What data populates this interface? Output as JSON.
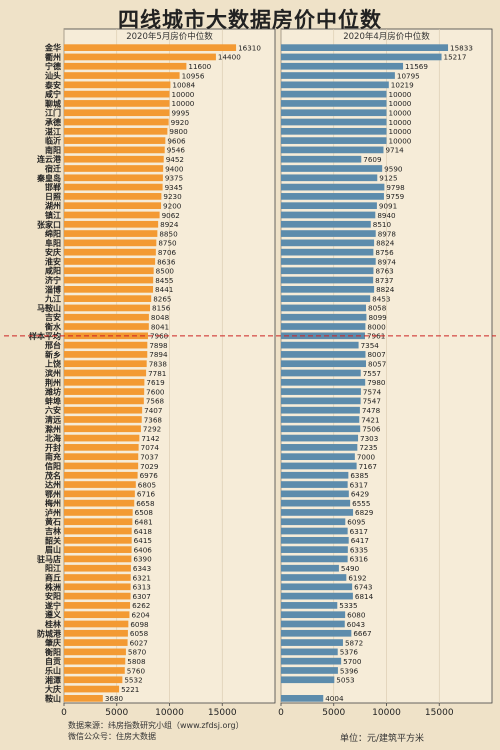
{
  "title": "四线城市大数据房价中位数",
  "source_line1": "数据来源：纬房指数研究小组（www.zfdsj.org）",
  "source_line2": "微信公众号：住房大数据",
  "unit_text": "单位：元/建筑平方米",
  "colors": {
    "left": "#f39a33",
    "right": "#5d8cac",
    "avg_line": "#cc2222"
  },
  "chart_data": [
    {
      "type": "bar",
      "title": "2020年5月房价中位数",
      "xlim": [
        0,
        20000
      ],
      "xticks": [
        "0",
        "5000",
        "10000",
        "15000"
      ],
      "categories": [
        "金华",
        "衢州",
        "宁德",
        "汕头",
        "泰安",
        "咸宁",
        "聊城",
        "江门",
        "承德",
        "湛江",
        "临沂",
        "南阳",
        "连云港",
        "宿迁",
        "秦皇岛",
        "邯郸",
        "日照",
        "湖州",
        "镇江",
        "张家口",
        "绵阳",
        "阜阳",
        "安庆",
        "淮安",
        "咸阳",
        "济宁",
        "淄博",
        "九江",
        "马鞍山",
        "吉安",
        "衡水",
        "样本平均",
        "邢台",
        "新乡",
        "上饶",
        "滨州",
        "荆州",
        "潍坊",
        "蚌埠",
        "六安",
        "清远",
        "滁州",
        "北海",
        "开封",
        "南充",
        "信阳",
        "茂名",
        "达州",
        "鄂州",
        "梅州",
        "泸州",
        "黄石",
        "吉林",
        "韶关",
        "眉山",
        "驻马店",
        "阳江",
        "商丘",
        "株洲",
        "安阳",
        "遂宁",
        "遵义",
        "桂林",
        "防城港",
        "肇庆",
        "衡阳",
        "自贡",
        "乐山",
        "湘潭",
        "大庆",
        "鞍山"
      ],
      "values": [
        16310,
        14400,
        11600,
        10956,
        10084,
        10000,
        10000,
        9995,
        9920,
        9800,
        9606,
        9546,
        9452,
        9400,
        9375,
        9345,
        9230,
        9200,
        9062,
        8924,
        8850,
        8750,
        8706,
        8636,
        8500,
        8455,
        8441,
        8265,
        8156,
        8048,
        8041,
        7960,
        7898,
        7894,
        7838,
        7781,
        7619,
        7600,
        7568,
        7407,
        7368,
        7292,
        7142,
        7074,
        7037,
        7029,
        6976,
        6805,
        6716,
        6658,
        6508,
        6481,
        6418,
        6415,
        6406,
        6390,
        6343,
        6321,
        6313,
        6307,
        6262,
        6204,
        6098,
        6058,
        6027,
        5870,
        5808,
        5760,
        5532,
        5221,
        3680
      ],
      "value_labels": [
        "16310",
        "14400",
        "11600",
        "10956",
        "10084",
        "10000",
        "10000",
        "9995",
        "9920",
        "9800",
        "9606",
        "9546",
        "9452",
        "9400",
        "9375",
        "9345",
        "9230",
        "9200",
        "9062",
        "8924",
        "8850",
        "8750",
        "8706",
        "8636",
        "8500",
        "8455",
        "8441",
        "8265",
        "8156",
        "8048",
        "8041",
        "7960",
        "7898",
        "7894",
        "7838",
        "7781",
        "7619",
        "7600",
        "7568",
        "7407",
        "7368",
        "7292",
        "7142",
        "7074",
        "7037",
        "7029",
        "6976",
        "6805",
        "6716",
        "6658",
        "6508",
        "6481",
        "6418",
        "6415",
        "6406",
        "6390",
        "6343",
        "6321",
        "6313",
        "6307",
        "6262",
        "6204",
        "6098",
        "6058",
        "6027",
        "5870",
        "5808",
        "5760",
        "5532",
        "5221",
        "3680"
      ],
      "average_label": "样本平均"
    },
    {
      "type": "bar",
      "title": "2020年4月房价中位数",
      "xlim": [
        0,
        20000
      ],
      "xticks": [
        "0",
        "5000",
        "10000",
        "15000"
      ],
      "values": [
        15833,
        15217,
        11569,
        10795,
        10219,
        10000,
        10000,
        10000,
        10000,
        10000,
        10000,
        9714,
        7609,
        9590,
        9125,
        9798,
        9759,
        9091,
        8940,
        8510,
        8978,
        8824,
        8756,
        8974,
        8763,
        8737,
        8824,
        8453,
        8058,
        8099,
        8000,
        7961,
        7354,
        8007,
        8057,
        7557,
        7980,
        7574,
        7547,
        7478,
        7421,
        7506,
        7303,
        7235,
        7000,
        7167,
        6385,
        6317,
        6429,
        6555,
        6829,
        6095,
        6317,
        6417,
        6335,
        6316,
        5490,
        6192,
        6743,
        6814,
        5335,
        6080,
        6043,
        6667,
        5872,
        5376,
        5700,
        5396,
        5053,
        4004
      ],
      "value_labels": [
        "15833",
        "15217",
        "11569",
        "10795",
        "10219",
        "10000",
        "10000",
        "10000",
        "10000",
        "10000",
        "10000",
        "9714",
        "7609",
        "9590",
        "9125",
        "9798",
        "9759",
        "9091",
        "8940",
        "8510",
        "8978",
        "8824",
        "8756",
        "8974",
        "8763",
        "8737",
        "8824",
        "8453",
        "8058",
        "8099",
        "8000",
        "7961",
        "7354",
        "8007",
        "8057",
        "7557",
        "7980",
        "7574",
        "7547",
        "7478",
        "7421",
        "7506",
        "7303",
        "7235",
        "7000",
        "7167",
        "6385",
        "6317",
        "6429",
        "6555",
        "6829",
        "6095",
        "6317",
        "6417",
        "6335",
        "6316",
        "5490",
        "6192",
        "6743",
        "6814",
        "5335",
        "6080",
        "6043",
        "6667",
        "5872",
        "5376",
        "5700",
        "5396",
        "5053",
        "4004"
      ],
      "value_rows": [
        0,
        1,
        2,
        3,
        4,
        5,
        6,
        7,
        8,
        9,
        10,
        11,
        12,
        13,
        14,
        15,
        16,
        17,
        18,
        19,
        20,
        21,
        22,
        23,
        24,
        25,
        26,
        27,
        28,
        29,
        30,
        31,
        32,
        33,
        34,
        35,
        36,
        37,
        38,
        39,
        40,
        41,
        42,
        43,
        44,
        45,
        46,
        47,
        48,
        49,
        50,
        51,
        52,
        53,
        54,
        55,
        56,
        57,
        58,
        59,
        60,
        61,
        62,
        63,
        64,
        65,
        66,
        67,
        68,
        70
      ]
    }
  ]
}
